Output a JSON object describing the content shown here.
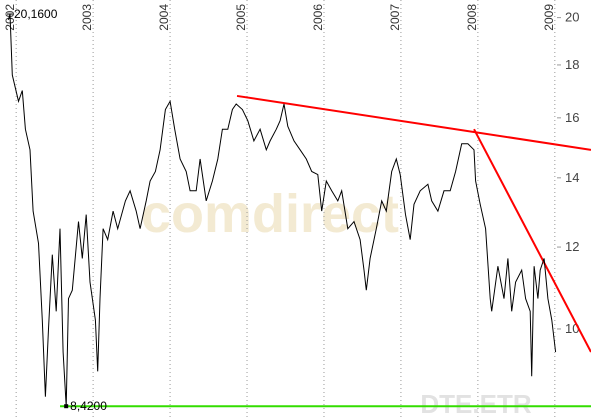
{
  "chart_data": {
    "type": "line",
    "log_y": true,
    "grid": "x",
    "watermark": "comdirect",
    "xlim": [
      2001.79,
      2009.47
    ],
    "xticks": [
      2002,
      2003,
      2004,
      2005,
      2006,
      2007,
      2008,
      2009
    ],
    "ylim": [
      8.22,
      20.8
    ],
    "yticks": [
      10,
      12,
      14,
      16,
      18,
      20
    ],
    "high": {
      "value": 20.16,
      "label": "20,1600"
    },
    "low": {
      "value": 8.42,
      "label": "8,4200"
    },
    "x": [
      2001.9,
      2001.92,
      2001.95,
      2002.03,
      2002.08,
      2002.12,
      2002.18,
      2002.22,
      2002.29,
      2002.34,
      2002.38,
      2002.42,
      2002.47,
      2002.52,
      2002.57,
      2002.61,
      2002.65,
      2002.68,
      2002.73,
      2002.81,
      2002.86,
      2002.91,
      2002.96,
      2003.03,
      2003.06,
      2003.09,
      2003.13,
      2003.19,
      2003.26,
      2003.32,
      2003.42,
      2003.48,
      2003.56,
      2003.61,
      2003.69,
      2003.74,
      2003.81,
      2003.87,
      2003.94,
      2004.0,
      2004.06,
      2004.13,
      2004.21,
      2004.26,
      2004.34,
      2004.39,
      2004.47,
      2004.55,
      2004.62,
      2004.68,
      2004.75,
      2004.81,
      2004.86,
      2004.94,
      2005.01,
      2005.09,
      2005.17,
      2005.25,
      2005.3,
      2005.38,
      2005.43,
      2005.48,
      2005.53,
      2005.61,
      2005.69,
      2005.77,
      2005.84,
      2005.92,
      2005.97,
      2006.03,
      2006.1,
      2006.18,
      2006.23,
      2006.31,
      2006.39,
      2006.47,
      2006.52,
      2006.55,
      2006.6,
      2006.68,
      2006.75,
      2006.81,
      2006.88,
      2006.94,
      2006.99,
      2007.06,
      2007.12,
      2007.17,
      2007.25,
      2007.35,
      2007.4,
      2007.48,
      2007.56,
      2007.64,
      2007.71,
      2007.79,
      2007.87,
      2007.95,
      2007.97,
      2008.03,
      2008.1,
      2008.16,
      2008.18,
      2008.26,
      2008.34,
      2008.39,
      2008.44,
      2008.49,
      2008.57,
      2008.62,
      2008.68,
      2008.7,
      2008.73,
      2008.78,
      2008.81,
      2008.86,
      2008.91,
      2008.96,
      2009.01
    ],
    "series": [
      {
        "name": "DTE.ETR",
        "color": "#000000",
        "values": [
          19.9,
          20.16,
          17.6,
          16.6,
          17.0,
          15.6,
          14.9,
          13.0,
          12.1,
          10.2,
          8.6,
          10.0,
          11.8,
          10.4,
          12.5,
          9.5,
          8.42,
          10.7,
          10.9,
          12.7,
          11.7,
          12.9,
          11.1,
          10.2,
          9.1,
          10.7,
          12.5,
          12.2,
          13.0,
          12.5,
          13.3,
          13.6,
          13.0,
          12.5,
          13.3,
          13.9,
          14.2,
          14.9,
          16.3,
          16.6,
          15.6,
          14.6,
          14.2,
          13.6,
          13.6,
          14.6,
          13.3,
          13.9,
          14.6,
          15.6,
          15.6,
          16.3,
          16.5,
          16.3,
          15.9,
          15.2,
          15.6,
          14.9,
          15.2,
          15.6,
          15.9,
          16.5,
          15.7,
          15.2,
          14.9,
          14.6,
          14.2,
          14.1,
          13.0,
          13.9,
          13.6,
          13.3,
          13.6,
          12.5,
          12.7,
          12.2,
          11.4,
          10.9,
          11.7,
          12.5,
          13.3,
          13.0,
          14.2,
          14.6,
          14.1,
          12.9,
          12.2,
          13.2,
          13.6,
          13.8,
          13.3,
          13.0,
          13.6,
          13.6,
          14.2,
          15.1,
          15.1,
          14.9,
          13.9,
          13.2,
          12.5,
          10.7,
          10.4,
          11.5,
          10.7,
          11.7,
          10.4,
          11.1,
          11.4,
          10.7,
          10.4,
          9.0,
          11.5,
          10.7,
          11.4,
          11.7,
          10.7,
          10.2,
          9.5
        ]
      }
    ],
    "lines": [
      {
        "color": "#ff0000",
        "x": [
          2004.87,
          2009.47
        ],
        "values": [
          16.8,
          14.9
        ]
      },
      {
        "color": "#ff0000",
        "x": [
          2007.95,
          2009.47
        ],
        "values": [
          15.6,
          9.5
        ]
      },
      {
        "color": "#33dd00",
        "x": [
          2002.57,
          2009.47
        ],
        "values": [
          8.42,
          8.42
        ]
      }
    ]
  }
}
